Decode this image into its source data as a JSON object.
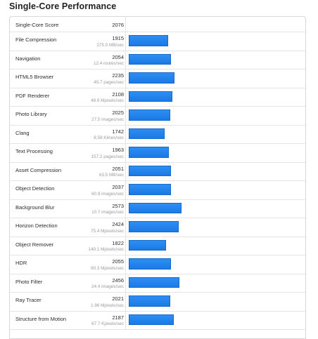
{
  "header": {
    "title": "Single-Core Performance"
  },
  "summary": {
    "label": "Single-Core Score",
    "score": "2076"
  },
  "max_score": 2600,
  "bar_color": "#1b7ae6",
  "tests": [
    {
      "name": "File Compression",
      "score": "1915",
      "detail": "275.0 MB/sec",
      "value": 1915
    },
    {
      "name": "Navigation",
      "score": "2054",
      "detail": "12.4 routes/sec",
      "value": 2054
    },
    {
      "name": "HTML5 Browser",
      "score": "2235",
      "detail": "45.7 pages/sec",
      "value": 2235
    },
    {
      "name": "PDF Renderer",
      "score": "2108",
      "detail": "48.6 Mpixels/sec",
      "value": 2108
    },
    {
      "name": "Photo Library",
      "score": "2025",
      "detail": "27.5 images/sec",
      "value": 2025
    },
    {
      "name": "Clang",
      "score": "1742",
      "detail": "8.58 Klines/sec",
      "value": 1742
    },
    {
      "name": "Text Processing",
      "score": "1963",
      "detail": "157.2 pages/sec",
      "value": 1963
    },
    {
      "name": "Asset Compression",
      "score": "2051",
      "detail": "63.5 MB/sec",
      "value": 2051
    },
    {
      "name": "Object Detection",
      "score": "2037",
      "detail": "60.9 images/sec",
      "value": 2037
    },
    {
      "name": "Background Blur",
      "score": "2573",
      "detail": "10.7 images/sec",
      "value": 2573
    },
    {
      "name": "Horizon Detection",
      "score": "2424",
      "detail": "75.4 Mpixels/sec",
      "value": 2424
    },
    {
      "name": "Object Remover",
      "score": "1822",
      "detail": "140.1 Mpixels/sec",
      "value": 1822
    },
    {
      "name": "HDR",
      "score": "2055",
      "detail": "60.3 Mpixels/sec",
      "value": 2055
    },
    {
      "name": "Photo Filter",
      "score": "2456",
      "detail": "24.4 images/sec",
      "value": 2456
    },
    {
      "name": "Ray Tracer",
      "score": "2021",
      "detail": "1.96 Mpixels/sec",
      "value": 2021
    },
    {
      "name": "Structure from Motion",
      "score": "2187",
      "detail": "67.7 Kpixels/sec",
      "value": 2187
    }
  ]
}
